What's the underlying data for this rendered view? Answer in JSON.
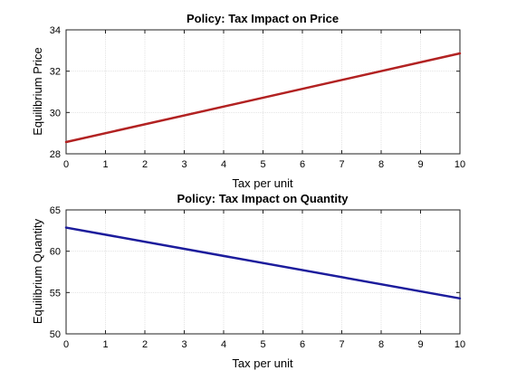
{
  "chart_data": [
    {
      "type": "line",
      "title": "Policy: Tax Impact on Price",
      "xlabel": "Tax per unit",
      "ylabel": "Equilibrium Price",
      "xlim": [
        0,
        10
      ],
      "ylim": [
        28,
        34
      ],
      "xticks": [
        0,
        1,
        2,
        3,
        4,
        5,
        6,
        7,
        8,
        9,
        10
      ],
      "yticks": [
        28,
        30,
        32,
        34
      ],
      "grid": true,
      "series": [
        {
          "x": [
            0,
            10
          ],
          "values": [
            28.57,
            32.86
          ],
          "color": "#b22222"
        }
      ]
    },
    {
      "type": "line",
      "title": "Policy: Tax Impact on Quantity",
      "xlabel": "Tax per unit",
      "ylabel": "Equilibrium Quantity",
      "xlim": [
        0,
        10
      ],
      "ylim": [
        50,
        65
      ],
      "xticks": [
        0,
        1,
        2,
        3,
        4,
        5,
        6,
        7,
        8,
        9,
        10
      ],
      "yticks": [
        50,
        55,
        60,
        65
      ],
      "grid": true,
      "series": [
        {
          "x": [
            0,
            10
          ],
          "values": [
            62.86,
            54.29
          ],
          "color": "#1c1c9c"
        }
      ]
    }
  ]
}
